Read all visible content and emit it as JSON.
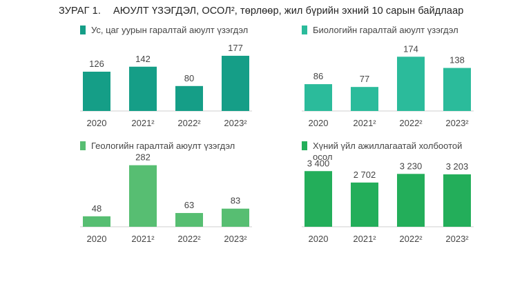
{
  "figure": {
    "number": "ЗУРАГ 1.",
    "title": "АЮУЛТ ҮЗЭГДЭЛ, ОСОЛ², төрлөөр, жил бүрийн эхний 10 сарын байдлаар"
  },
  "colors": {
    "dark_teal": "#159e87",
    "teal": "#2bbb9b",
    "light_green": "#57be72",
    "green": "#23ae5a",
    "baseline": "#cfcfcf"
  },
  "chart_data": [
    {
      "type": "bar",
      "title": "Ус, цаг уурын гаралтай аюулт үзэгдэл",
      "categories": [
        "2020",
        "2021²",
        "2022²",
        "2023²"
      ],
      "values": [
        126,
        142,
        80,
        177
      ],
      "value_labels": [
        "126",
        "142",
        "80",
        "177"
      ],
      "ylim": [
        0,
        210
      ],
      "color": "#159e87",
      "grid": false
    },
    {
      "type": "bar",
      "title": "Биологийн гаралтай аюулт үзэгдэл",
      "categories": [
        "2020",
        "2021²",
        "2022²",
        "2023²"
      ],
      "values": [
        86,
        77,
        174,
        138
      ],
      "value_labels": [
        "86",
        "77",
        "174",
        "138"
      ],
      "ylim": [
        0,
        210
      ],
      "color": "#2bbb9b",
      "grid": false
    },
    {
      "type": "bar",
      "title": "Геологийн гаралтай аюулт үзэгдэл",
      "categories": [
        "2020",
        "2021²",
        "2022²",
        "2023²"
      ],
      "values": [
        48,
        282,
        63,
        83
      ],
      "value_labels": [
        "48",
        "282",
        "63",
        "83"
      ],
      "ylim": [
        0,
        300
      ],
      "color": "#57be72",
      "grid": false
    },
    {
      "type": "bar",
      "title": "Хүний үйл ажиллагаатай холбоотой осол",
      "categories": [
        "2020",
        "2021²",
        "2022²",
        "2023²"
      ],
      "values": [
        3400,
        2702,
        3230,
        3203
      ],
      "value_labels": [
        "3 400",
        "2 702",
        "3 230",
        "3 203"
      ],
      "ylim": [
        0,
        4000
      ],
      "color": "#23ae5a",
      "grid": false
    }
  ]
}
